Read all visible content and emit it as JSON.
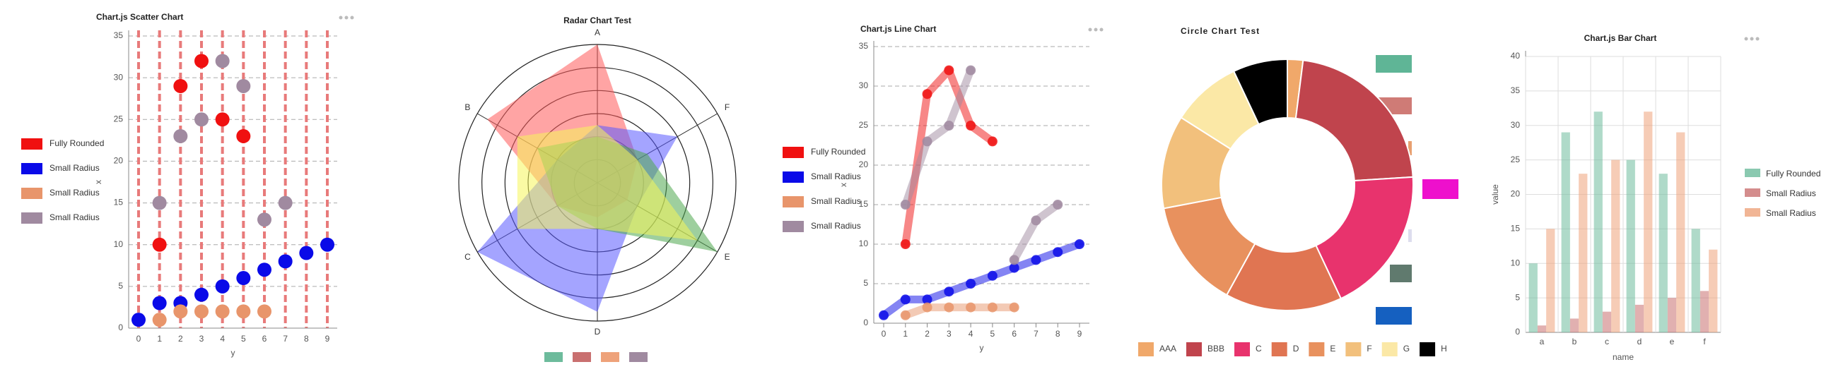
{
  "chart_data": [
    {
      "type": "scatter",
      "title": "Chart.js Scatter Chart",
      "xlabel": "y",
      "ylabel": "x",
      "xlim": [
        0,
        9
      ],
      "ylim": [
        0,
        35
      ],
      "xticks": [
        0,
        1,
        2,
        3,
        4,
        5,
        6,
        7,
        8,
        9
      ],
      "yticks": [
        0,
        5,
        10,
        15,
        20,
        25,
        30,
        35
      ],
      "grid": true,
      "x_grid_color": "#e87a7a",
      "legend": "left",
      "series": [
        {
          "name": "Fully Rounded",
          "color": "#f01010",
          "x": [
            1,
            2,
            3,
            4,
            5
          ],
          "values": [
            10,
            29,
            32,
            25,
            23
          ]
        },
        {
          "name": "Small Radius",
          "color": "#0a0ae8",
          "x": [
            0,
            1,
            2,
            3,
            4,
            5,
            6,
            7,
            8,
            9
          ],
          "values": [
            1,
            3,
            3,
            4,
            5,
            6,
            7,
            8,
            9,
            10
          ]
        },
        {
          "name": "Small Radius",
          "color": "#e8956b",
          "x": [
            1,
            2,
            3,
            4,
            5,
            6
          ],
          "values": [
            1,
            2,
            2,
            2,
            2,
            2
          ]
        },
        {
          "name": "Small Radius",
          "color": "#a08aa0",
          "x": [
            1,
            2,
            3,
            4,
            5,
            6,
            7
          ],
          "values": [
            15,
            23,
            25,
            32,
            29,
            13,
            15
          ]
        }
      ]
    },
    {
      "type": "radar",
      "title": "Radar Chart Test",
      "categories": [
        "A",
        "F",
        "E",
        "D",
        "C",
        "B"
      ],
      "rlim": [
        0,
        6
      ],
      "rticks": [
        1,
        2,
        3,
        4,
        5,
        6
      ],
      "legend": "bottom",
      "series": [
        {
          "color": "#ff5a5a",
          "legend_color": "#6dbb9c",
          "values": [
            6,
            2,
            1.5,
            1.5,
            2,
            5.5
          ]
        },
        {
          "color": "#5a5aff",
          "legend_color": "#c97070",
          "values": [
            2.5,
            4,
            2,
            5.6,
            6,
            2
          ]
        },
        {
          "color": "#4fa84f",
          "legend_color": "#eea27a",
          "values": [
            2,
            2.5,
            6,
            2,
            2,
            3
          ]
        },
        {
          "color": "#f5f55a",
          "legend_color": "#a08aa0",
          "values": [
            2.5,
            2,
            5,
            2,
            4,
            4
          ]
        }
      ]
    },
    {
      "type": "line",
      "title": "Chart.js Line Chart",
      "xlabel": "y",
      "ylabel": "x",
      "xlim": [
        0,
        9
      ],
      "ylim": [
        0,
        35
      ],
      "xticks": [
        0,
        1,
        2,
        3,
        4,
        5,
        6,
        7,
        8,
        9
      ],
      "yticks": [
        0,
        5,
        10,
        15,
        20,
        25,
        30,
        35
      ],
      "grid": true,
      "legend": "left",
      "series": [
        {
          "name": "Fully Rounded",
          "color": "#f01010",
          "x": [
            1,
            2,
            3,
            4,
            5
          ],
          "values": [
            10,
            29,
            32,
            25,
            23
          ]
        },
        {
          "name": "Small Radius",
          "color": "#0a0ae8",
          "x": [
            0,
            1,
            2,
            3,
            4,
            5,
            6,
            7,
            8,
            9
          ],
          "values": [
            1,
            3,
            3,
            4,
            5,
            6,
            7,
            8,
            9,
            10
          ]
        },
        {
          "name": "Small Radius",
          "color": "#e8956b",
          "x": [
            1,
            2,
            3,
            4,
            5,
            6
          ],
          "values": [
            1,
            2,
            2,
            2,
            2,
            2
          ]
        },
        {
          "name": "Small Radius",
          "color": "#a08aa0",
          "x": [
            1,
            2,
            3,
            4,
            5,
            6,
            7,
            8
          ],
          "values": [
            15,
            23,
            25,
            32,
            null,
            8,
            13,
            15
          ]
        }
      ]
    },
    {
      "type": "doughnut",
      "title": "Circle Chart Test",
      "legend": "bottom",
      "categories": [
        "AAA",
        "BBB",
        "C",
        "D",
        "E",
        "F",
        "G",
        "H"
      ],
      "values": [
        2,
        22,
        19,
        15,
        14,
        12,
        9,
        7
      ],
      "colors": [
        "#f0a86a",
        "#c0444d",
        "#e8336d",
        "#e07552",
        "#e8915e",
        "#f2c07c",
        "#fbe8a6",
        "#000000"
      ]
    },
    {
      "type": "bar",
      "title": "Chart.js Bar Chart",
      "xlabel": "name",
      "ylabel": "value",
      "categories": [
        "a",
        "b",
        "c",
        "d",
        "e",
        "f"
      ],
      "ylim": [
        0,
        40
      ],
      "yticks": [
        0,
        5,
        10,
        15,
        20,
        25,
        30,
        35,
        40
      ],
      "grid": true,
      "legend": "right",
      "series": [
        {
          "name": "Fully Rounded",
          "color": "#6dbb9c",
          "values": [
            10,
            29,
            32,
            25,
            23,
            15
          ]
        },
        {
          "name": "Small Radius",
          "color": "#c97070",
          "values": [
            1,
            2,
            3,
            4,
            5,
            6
          ]
        },
        {
          "name": "Small Radius",
          "color": "#eea27a",
          "values": [
            15,
            23,
            25,
            32,
            29,
            12
          ]
        }
      ]
    }
  ]
}
